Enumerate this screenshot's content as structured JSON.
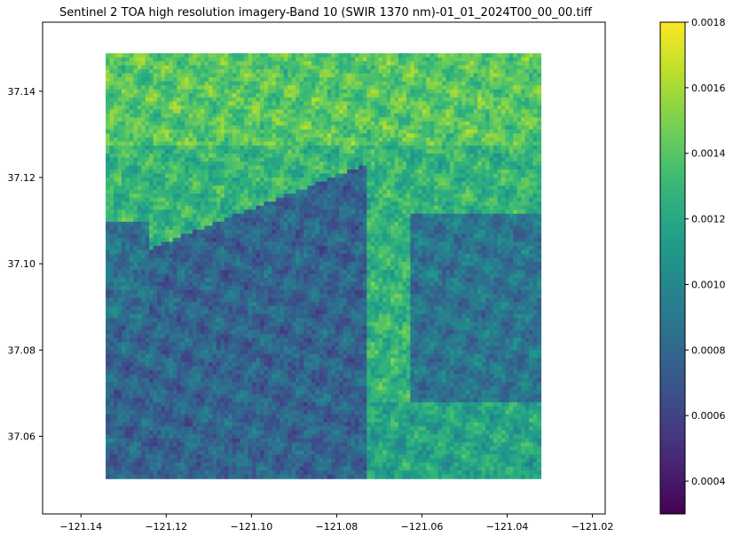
{
  "chart_data": [
    {
      "type": "heatmap",
      "title": "Sentinel 2 TOA high resolution imagery-Band 10 (SWIR 1370 nm)-01_01_2024T00_00_00.tiff",
      "xlabel": "",
      "ylabel": "",
      "xlim": [
        -121.149,
        -121.017
      ],
      "ylim": [
        37.042,
        37.156
      ],
      "x_ticks": [
        -121.14,
        -121.12,
        -121.1,
        -121.08,
        -121.06,
        -121.04,
        -121.02
      ],
      "x_tick_labels": [
        "−121.14",
        "−121.12",
        "−121.10",
        "−121.08",
        "−121.06",
        "−121.04",
        "−121.02"
      ],
      "y_ticks": [
        37.06,
        37.08,
        37.1,
        37.12,
        37.14
      ],
      "y_tick_labels": [
        "37.06",
        "37.08",
        "37.10",
        "37.12",
        "37.14"
      ],
      "raster_extent": {
        "x": [
          -121.1342,
          -121.0321
        ],
        "y": [
          37.0502,
          37.1488
        ]
      },
      "grid": false,
      "colormap": "viridis",
      "value_range": [
        0.0003,
        0.0018
      ],
      "regions": [
        {
          "area": "lower-left (southwest)",
          "approx_value": 0.00075
        },
        {
          "area": "right-center (east channel)",
          "approx_value": 0.00088
        },
        {
          "area": "upper and central",
          "approx_value": 0.00135
        },
        {
          "area": "top-left peaks",
          "approx_value": 0.0016
        }
      ]
    },
    {
      "type": "colorbar",
      "ylim": [
        0.0003,
        0.0018
      ],
      "ticks": [
        0.0004,
        0.0006,
        0.0008,
        0.001,
        0.0012,
        0.0014,
        0.0016,
        0.0018
      ],
      "tick_labels": [
        "0.0004",
        "0.0006",
        "0.0008",
        "0.0010",
        "0.0012",
        "0.0014",
        "0.0016",
        "0.0018"
      ],
      "colormap": "viridis"
    }
  ]
}
